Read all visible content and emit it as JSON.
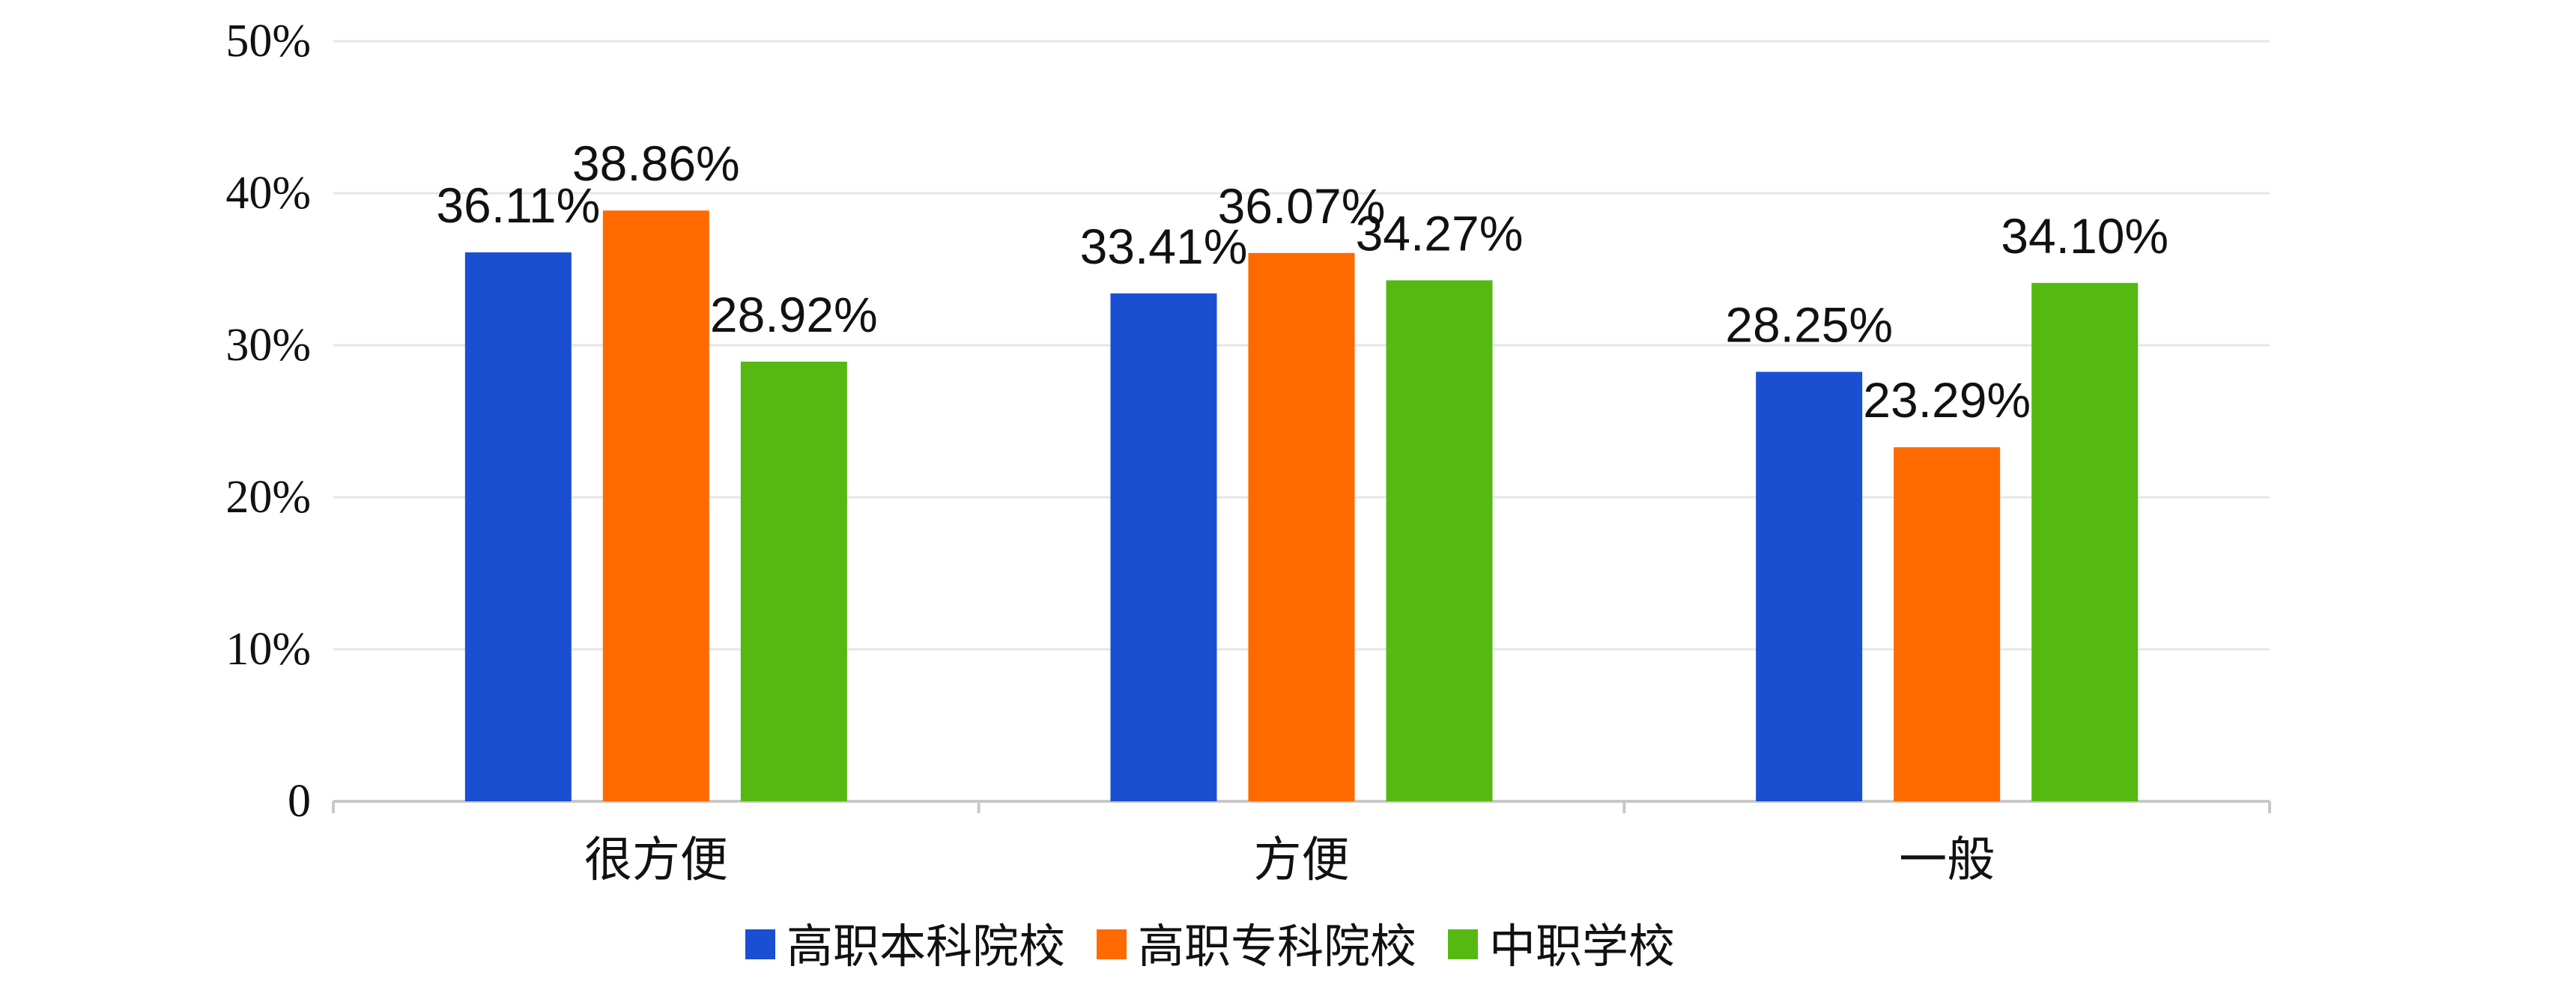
{
  "chart_data": {
    "type": "bar",
    "categories": [
      "很方便",
      "方便",
      "一般"
    ],
    "series": [
      {
        "name": "高职本科院校",
        "color": "#1a4fd1",
        "values": [
          36.11,
          33.41,
          28.25
        ],
        "labels": [
          "36.11%",
          "33.41%",
          "28.25%"
        ]
      },
      {
        "name": "高职专科院校",
        "color": "#ff6a00",
        "values": [
          38.86,
          36.07,
          23.29
        ],
        "labels": [
          "38.86%",
          "36.07%",
          "23.29%"
        ]
      },
      {
        "name": "中职学校",
        "color": "#55b911",
        "values": [
          28.92,
          34.27,
          34.1
        ],
        "labels": [
          "28.92%",
          "34.27%",
          "34.10%"
        ]
      }
    ],
    "y_ticks": [
      {
        "value": 0,
        "label": "0"
      },
      {
        "value": 10,
        "label": "10%"
      },
      {
        "value": 20,
        "label": "20%"
      },
      {
        "value": 30,
        "label": "30%"
      },
      {
        "value": 40,
        "label": "40%"
      },
      {
        "value": 50,
        "label": "50%"
      }
    ],
    "ylim": [
      0,
      50
    ],
    "grid": true,
    "legend_position": "bottom"
  }
}
